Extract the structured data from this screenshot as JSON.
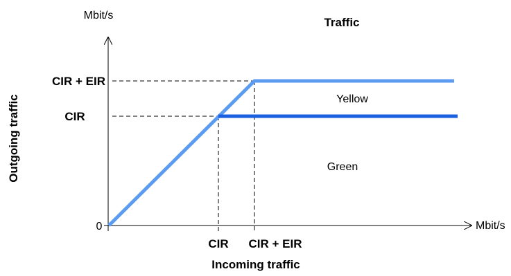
{
  "title": "Traffic",
  "y_axis": {
    "unit": "Mbit/s",
    "label": "Outgoing traffic",
    "zero": "0",
    "ticks": [
      "CIR + EIR",
      "CIR"
    ]
  },
  "x_axis": {
    "unit": "Mbit/s",
    "label": "Incoming traffic",
    "ticks": [
      "CIR",
      "CIR + EIR"
    ]
  },
  "regions": {
    "upper": "Yellow",
    "lower": "Green"
  },
  "colors": {
    "light_line": "#5b9bf0",
    "dark_line": "#1a5fe0",
    "axis": "#000000"
  }
}
